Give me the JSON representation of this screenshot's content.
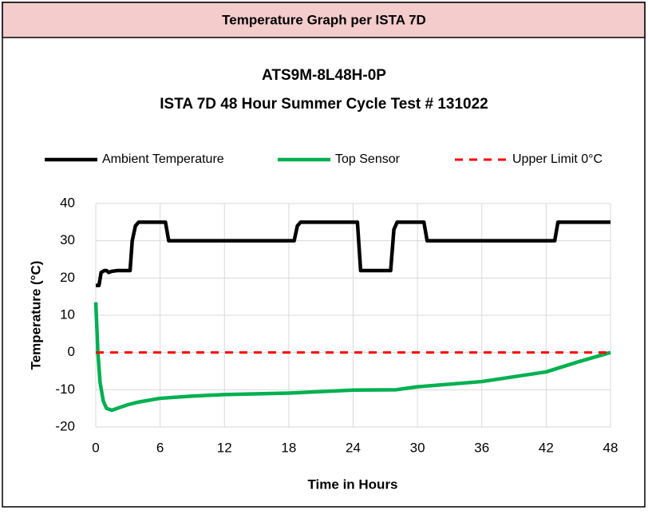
{
  "header": {
    "title": "Temperature Graph per ISTA 7D"
  },
  "chart_data": {
    "type": "line",
    "title": "ATS9M-8L48H-0P",
    "subtitle": "ISTA 7D 48 Hour Summer Cycle Test # 131022",
    "xlabel": "Time in Hours",
    "ylabel": "Temperature (°C)",
    "xlim": [
      0,
      48
    ],
    "xticks": [
      0,
      6,
      12,
      18,
      24,
      30,
      36,
      42,
      48
    ],
    "ylim": [
      -20,
      40
    ],
    "yticks": [
      -20,
      -10,
      0,
      10,
      20,
      30,
      40
    ],
    "grid": true,
    "legend": "top",
    "series": [
      {
        "name": "Ambient Temperature",
        "color": "#000000",
        "dash": false,
        "x": [
          0,
          0.3,
          0.5,
          0.8,
          1.0,
          1.2,
          1.5,
          2,
          3.2,
          3.4,
          3.7,
          4,
          6.5,
          6.8,
          7.2,
          18.5,
          18.8,
          19.1,
          24.4,
          24.7,
          27.5,
          27.8,
          28.1,
          30.6,
          30.9,
          42.8,
          43.1,
          48
        ],
        "values": [
          18,
          18,
          21.5,
          22,
          22,
          21.5,
          21.8,
          22,
          22,
          30,
          34,
          35,
          35,
          30,
          30,
          30,
          34,
          35,
          35,
          22,
          22,
          33,
          35,
          35,
          30,
          30,
          35,
          35
        ]
      },
      {
        "name": "Top Sensor",
        "color": "#00b050",
        "dash": false,
        "x": [
          0,
          0.2,
          0.4,
          0.7,
          1,
          1.5,
          2,
          3,
          4,
          6,
          9,
          12,
          18,
          24,
          28,
          30,
          36,
          42,
          45,
          48
        ],
        "values": [
          13.5,
          0,
          -8,
          -13,
          -15,
          -15.5,
          -15,
          -14,
          -13.3,
          -12.3,
          -11.7,
          -11.3,
          -10.9,
          -10.1,
          -10,
          -9.2,
          -7.8,
          -5.2,
          -2.5,
          0
        ]
      },
      {
        "name": "Upper Limit 0°C",
        "color": "#ff0000",
        "dash": true,
        "x": [
          0,
          48
        ],
        "values": [
          0,
          0
        ]
      }
    ]
  }
}
